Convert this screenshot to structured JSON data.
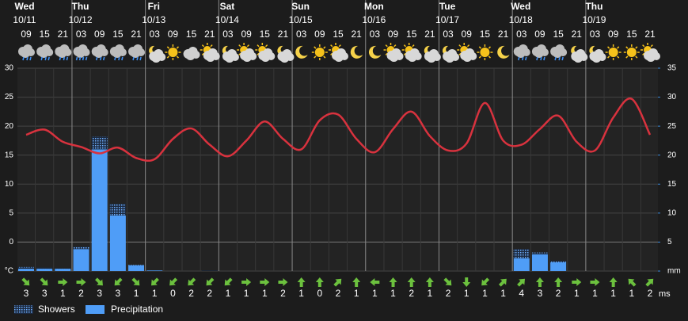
{
  "chart_data": {
    "type": "meteogram",
    "days": [
      {
        "day": "Wed",
        "date": "10/11"
      },
      {
        "day": "Thu",
        "date": "10/12"
      },
      {
        "day": "Fri",
        "date": "10/13"
      },
      {
        "day": "Sat",
        "date": "10/14"
      },
      {
        "day": "Sun",
        "date": "10/15"
      },
      {
        "day": "Mon",
        "date": "10/16"
      },
      {
        "day": "Tue",
        "date": "10/17"
      },
      {
        "day": "Wed",
        "date": "10/18"
      },
      {
        "day": "Thu",
        "date": "10/19"
      }
    ],
    "categories": [
      "09",
      "15",
      "21",
      "03",
      "09",
      "15",
      "21",
      "03",
      "09",
      "15",
      "21",
      "03",
      "09",
      "15",
      "21",
      "03",
      "09",
      "15",
      "21",
      "03",
      "09",
      "15",
      "21",
      "03",
      "09",
      "15",
      "21",
      "03",
      "09",
      "15",
      "21",
      "03",
      "09",
      "15",
      "21"
    ],
    "series": [
      {
        "color": "#d8323e",
        "values": [
          18.5,
          19.4,
          17.3,
          16.4,
          15.3,
          16.3,
          14.5,
          14.3,
          17.8,
          19.6,
          16.8,
          14.8,
          17.5,
          20.8,
          17.8,
          16.0,
          21.0,
          22.0,
          17.8,
          15.5,
          19.5,
          22.5,
          18.3,
          15.8,
          17.0,
          24.0,
          17.5,
          16.8,
          19.5,
          21.8,
          17.3,
          15.8,
          21.5,
          24.7,
          18.5
        ]
      },
      {
        "name": "Showers",
        "color": "#4f9df7",
        "axis": "y2",
        "values": [
          0.3,
          0.2,
          0.1,
          0.4,
          2.2,
          2.0,
          0.1,
          0,
          0,
          0,
          0.1,
          0,
          0,
          0,
          0,
          0,
          0,
          0,
          0,
          0,
          0,
          0,
          0,
          0,
          0,
          0,
          0,
          1.6,
          0.3,
          0.3,
          0,
          0,
          0,
          0,
          0
        ]
      },
      {
        "name": "Precipitation",
        "color": "#4f9df7",
        "axis": "y2",
        "values": [
          0.4,
          0.4,
          0.4,
          3.8,
          21.0,
          9.6,
          1.0,
          0.1,
          0,
          0,
          0,
          0,
          0,
          0,
          0,
          0,
          0,
          0,
          0,
          0,
          0,
          0,
          0,
          0,
          0,
          0,
          0,
          2.2,
          2.9,
          1.5,
          0,
          0,
          0,
          0,
          0
        ]
      }
    ],
    "wind_direction": [
      135,
      135,
      90,
      90,
      135,
      225,
      135,
      225,
      225,
      225,
      225,
      225,
      90,
      90,
      90,
      0,
      0,
      45,
      0,
      270,
      0,
      0,
      0,
      135,
      180,
      225,
      45,
      45,
      0,
      0,
      90,
      90,
      0,
      315,
      45
    ],
    "wind_speed": [
      3,
      3,
      1,
      2,
      3,
      3,
      1,
      1,
      0,
      2,
      2,
      1,
      1,
      1,
      2,
      1,
      0,
      2,
      1,
      1,
      1,
      2,
      1,
      2,
      1,
      1,
      1,
      4,
      3,
      2,
      1,
      1,
      1,
      1,
      2
    ],
    "wind_unit": "ms",
    "ylim": [
      -5,
      30
    ],
    "yticks": [
      {
        "value": -5,
        "label": "°C"
      },
      0,
      5,
      10,
      15,
      20,
      25,
      30
    ],
    "y2lim": [
      0,
      35
    ],
    "y2ticks": [
      {
        "value": 0,
        "label": "mm"
      },
      5,
      10,
      15,
      20,
      25,
      30,
      35
    ],
    "grid": true
  }
}
